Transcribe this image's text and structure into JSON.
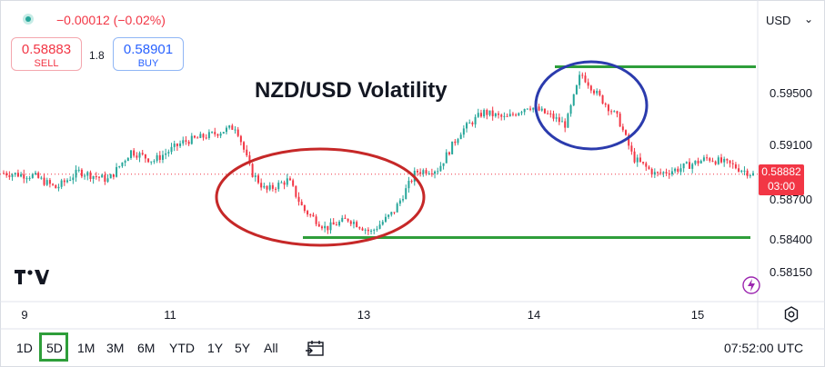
{
  "header": {
    "change": "−0.00012 (−0.02%)",
    "sell_price": "0.58883",
    "sell_label": "SELL",
    "spread": "1.8",
    "buy_price": "0.58901",
    "buy_label": "BUY",
    "currency": "USD"
  },
  "price_tag": {
    "price": "0.58882",
    "countdown": "03:00"
  },
  "toolbar": {
    "ranges": [
      "1D",
      "5D",
      "1M",
      "3M",
      "6M",
      "YTD",
      "1Y",
      "5Y",
      "All"
    ],
    "active_range": "5D",
    "time": "07:52:00 UTC"
  },
  "colors": {
    "up": "#26a69a",
    "down": "#f23645",
    "annot_green": "#2e9e3a",
    "annot_red": "#c62828",
    "annot_blue": "#2b3bad"
  },
  "chart_data": {
    "type": "candlestick",
    "title": "NZD/USD Volatility",
    "x_ticks": [
      "9",
      "11",
      "13",
      "14",
      "15"
    ],
    "y_ticks": [
      "0.59500",
      "0.59100",
      "0.58700",
      "0.58400",
      "0.58150"
    ],
    "ylim": [
      0.58,
      0.5985
    ],
    "current_price": 0.58882,
    "path_points": [
      [
        0,
        0.5889
      ],
      [
        0.04,
        0.5887
      ],
      [
        0.07,
        0.5878
      ],
      [
        0.1,
        0.589
      ],
      [
        0.14,
        0.5884
      ],
      [
        0.17,
        0.5905
      ],
      [
        0.2,
        0.5898
      ],
      [
        0.24,
        0.5912
      ],
      [
        0.28,
        0.5918
      ],
      [
        0.31,
        0.5924
      ],
      [
        0.33,
        0.589
      ],
      [
        0.35,
        0.5876
      ],
      [
        0.38,
        0.5884
      ],
      [
        0.4,
        0.5862
      ],
      [
        0.43,
        0.5848
      ],
      [
        0.46,
        0.5855
      ],
      [
        0.49,
        0.5845
      ],
      [
        0.52,
        0.586
      ],
      [
        0.55,
        0.589
      ],
      [
        0.58,
        0.5892
      ],
      [
        0.61,
        0.592
      ],
      [
        0.64,
        0.5935
      ],
      [
        0.67,
        0.593
      ],
      [
        0.7,
        0.594
      ],
      [
        0.73,
        0.5932
      ],
      [
        0.75,
        0.5925
      ],
      [
        0.77,
        0.5965
      ],
      [
        0.79,
        0.595
      ],
      [
        0.82,
        0.593
      ],
      [
        0.84,
        0.59
      ],
      [
        0.87,
        0.5888
      ],
      [
        0.9,
        0.5892
      ],
      [
        0.94,
        0.59
      ],
      [
        0.97,
        0.5895
      ],
      [
        1.0,
        0.5888
      ]
    ],
    "annotations": {
      "support_level": 0.5841,
      "resistance_level": 0.597
    }
  }
}
